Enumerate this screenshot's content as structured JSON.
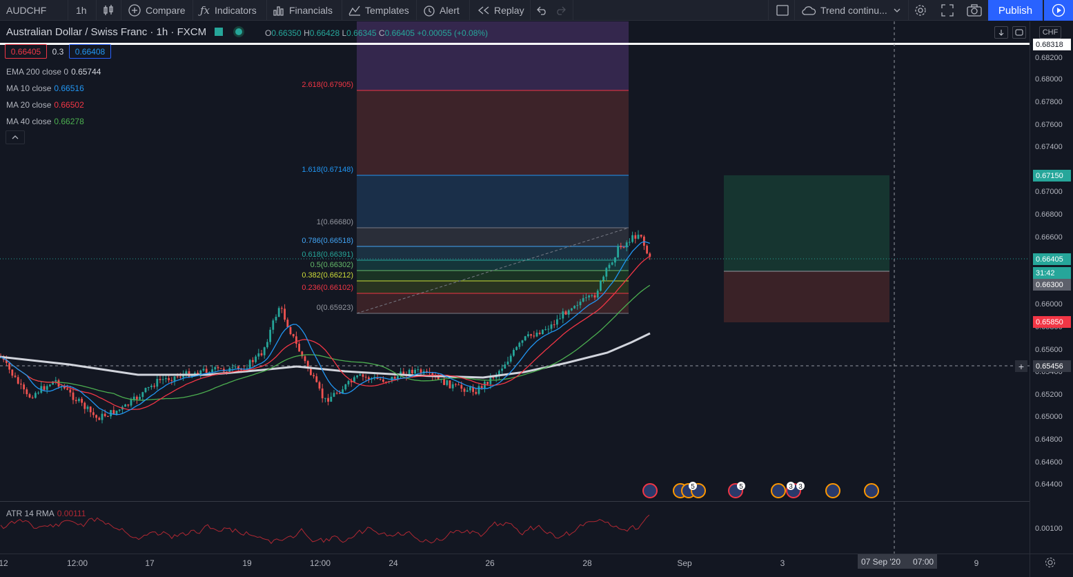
{
  "toolbar": {
    "symbol": "AUDCHF",
    "interval": "1h",
    "compare": "Compare",
    "indicators": "Indicators",
    "financials": "Financials",
    "templates": "Templates",
    "alert": "Alert",
    "replay": "Replay",
    "layout_name": "Trend continu...",
    "publish": "Publish"
  },
  "legend": {
    "title": "Australian Dollar / Swiss Franc · 1h · FXCM",
    "ohlc": {
      "o_label": "O",
      "o": "0.66350",
      "h_label": "H",
      "h": "0.66428",
      "l_label": "L",
      "l": "0.66345",
      "c_label": "C",
      "c": "0.66405",
      "change": "+0.00055 (+0.08%)"
    },
    "bid": "0.66405",
    "spread": "0.3",
    "ask": "0.66408",
    "indicators": [
      {
        "name": "EMA 200 close 0",
        "value": "0.65744",
        "color": "#d1d4dc"
      },
      {
        "name": "MA 10 close",
        "value": "0.66516",
        "color": "#2196f3"
      },
      {
        "name": "MA 20 close",
        "value": "0.66502",
        "color": "#f23645"
      },
      {
        "name": "MA 40 close",
        "value": "0.66278",
        "color": "#4caf50"
      }
    ],
    "atr_name": "ATR 14 RMA",
    "atr_value": "0.00111"
  },
  "fib_levels": [
    {
      "label": "2.618(0.67905)",
      "color": "#f23645"
    },
    {
      "label": "1.618(0.67148)",
      "color": "#2196f3"
    },
    {
      "label": "1(0.66680)",
      "color": "#9598a1"
    },
    {
      "label": "0.786(0.66518)",
      "color": "#42a5f5"
    },
    {
      "label": "0.618(0.66391)",
      "color": "#26a69a"
    },
    {
      "label": "0.5(0.66302)",
      "color": "#66bb6a"
    },
    {
      "label": "0.382(0.66212)",
      "color": "#cddc39"
    },
    {
      "label": "0.236(0.66102)",
      "color": "#f23645"
    },
    {
      "label": "0(0.65923)",
      "color": "#9598a1"
    }
  ],
  "price_axis": {
    "currency": "CHF",
    "ticks": [
      "0.68200",
      "0.68000",
      "0.67800",
      "0.67600",
      "0.67400",
      "0.67000",
      "0.66800",
      "0.66600",
      "0.66000",
      "0.65800",
      "0.65600",
      "0.65400",
      "0.65200",
      "0.65000",
      "0.64800",
      "0.64600",
      "0.64400"
    ],
    "atr_tick": "0.00100",
    "labels": {
      "top_line": "0.68318",
      "target": "0.67150",
      "current": "0.66405",
      "countdown": "31:42",
      "entry": "0.66300",
      "stop": "0.65850",
      "crosshair": "0.65456"
    }
  },
  "time_axis": {
    "ticks": [
      "12",
      "12:00",
      "17",
      "19",
      "12:00",
      "24",
      "26",
      "28",
      "Sep",
      "3",
      "9"
    ],
    "crosshair_date": "07 Sep '20",
    "crosshair_time": "07:00"
  },
  "event_badges": [
    "5",
    "5",
    "3",
    "3"
  ]
}
